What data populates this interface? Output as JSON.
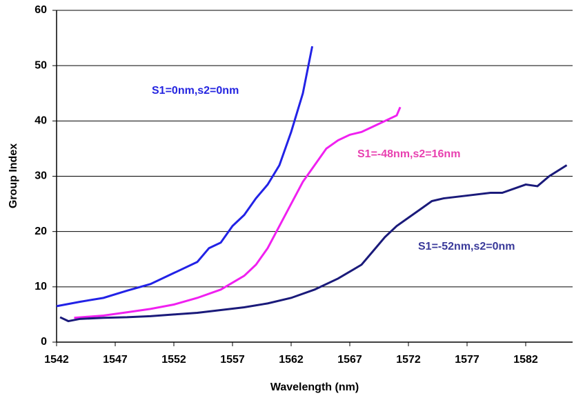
{
  "chart_data": {
    "type": "line",
    "xlabel": "Wavelength (nm)",
    "ylabel": "Group Index",
    "xlim": [
      1542,
      1586
    ],
    "xticks": [
      1542,
      1547,
      1552,
      1557,
      1562,
      1567,
      1572,
      1577,
      1582
    ],
    "ylim": [
      0,
      60
    ],
    "yticks": [
      0,
      10,
      20,
      30,
      40,
      50,
      60
    ],
    "grid": true,
    "series": [
      {
        "name": "S1=0nm,s2=0nm",
        "color": "#2222e6",
        "x": [
          1542,
          1544,
          1546,
          1548,
          1550,
          1552,
          1554,
          1555,
          1556,
          1557,
          1557.5,
          1558,
          1559,
          1560,
          1561,
          1562,
          1563,
          1563.8
        ],
        "values": [
          6.5,
          7.3,
          8,
          9.3,
          10.5,
          12.5,
          14.5,
          17,
          18,
          21,
          22,
          23,
          26,
          28.5,
          32,
          38,
          45,
          53.5
        ]
      },
      {
        "name": "S1=-48nm,s2=16nm",
        "color": "#f020f0",
        "x": [
          1543.5,
          1546,
          1548,
          1550,
          1552,
          1554,
          1556,
          1558,
          1559,
          1560,
          1561,
          1562,
          1563,
          1564,
          1565,
          1566,
          1567,
          1568,
          1569,
          1570,
          1571,
          1571.3
        ],
        "values": [
          4.4,
          4.8,
          5.4,
          6,
          6.8,
          8,
          9.5,
          12,
          14,
          17,
          21,
          25,
          29,
          32,
          35,
          36.5,
          37.5,
          38,
          39,
          40,
          41,
          42.5
        ]
      },
      {
        "name": "S1=-52nm,s2=0nm",
        "color": "#1a1a7a",
        "x": [
          1542.3,
          1543,
          1544,
          1546,
          1548,
          1550,
          1552,
          1554,
          1556,
          1558,
          1560,
          1562,
          1564,
          1566,
          1568,
          1569,
          1570,
          1571,
          1572,
          1573,
          1574,
          1575,
          1577,
          1579,
          1580,
          1582,
          1583,
          1584,
          1585.5
        ],
        "values": [
          4.5,
          3.8,
          4.2,
          4.4,
          4.5,
          4.7,
          5,
          5.3,
          5.8,
          6.3,
          7,
          8,
          9.5,
          11.5,
          14,
          16.5,
          19,
          21,
          22.5,
          24,
          25.5,
          26,
          26.5,
          27,
          27,
          28.5,
          28.2,
          30,
          32
        ]
      }
    ]
  }
}
